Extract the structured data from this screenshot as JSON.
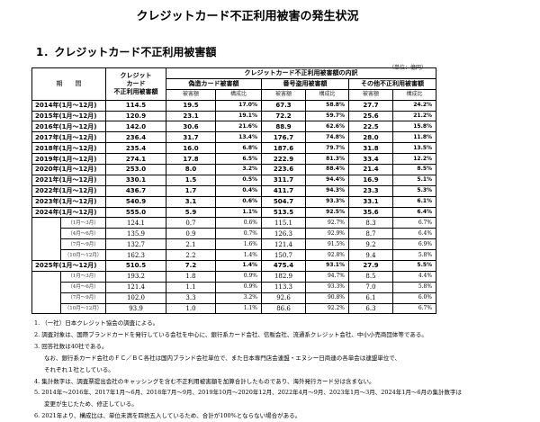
{
  "title": "クレジットカード不正利用被害の発生状況",
  "heading": "1．クレジットカード不正利用被害額",
  "unit": "（単位：億円）",
  "table": {
    "h_period": "期　　間",
    "h_total": "クレジット\nカード\n不正利用被害額",
    "h_breakdown": "クレジットカード不正利用被害額の内訳",
    "h_forged": "偽造カード被害額",
    "h_number": "番号盗用被害額",
    "h_other": "その他不正利用被害額",
    "h_amount": "被害額",
    "h_ratio": "構成比",
    "rows": [
      {
        "type": "year",
        "period": "2014年(1月～12月)",
        "total": "114.5",
        "f": "19.5",
        "fr": "17.0%",
        "n": "67.3",
        "nr": "58.8%",
        "o": "27.7",
        "or": "24.2%"
      },
      {
        "type": "year",
        "period": "2015年(1月～12月)",
        "total": "120.9",
        "f": "23.1",
        "fr": "19.1%",
        "n": "72.2",
        "nr": "59.7%",
        "o": "25.6",
        "or": "21.2%"
      },
      {
        "type": "year",
        "period": "2016年(1月～12月)",
        "total": "142.0",
        "f": "30.6",
        "fr": "21.6%",
        "n": "88.9",
        "nr": "62.6%",
        "o": "22.5",
        "or": "15.8%"
      },
      {
        "type": "year",
        "period": "2017年(1月～12月)",
        "total": "236.4",
        "f": "31.7",
        "fr": "13.4%",
        "n": "176.7",
        "nr": "74.8%",
        "o": "28.0",
        "or": "11.8%"
      },
      {
        "type": "year",
        "period": "2018年(1月～12月)",
        "total": "235.4",
        "f": "16.0",
        "fr": "6.8%",
        "n": "187.6",
        "nr": "79.7%",
        "o": "31.8",
        "or": "13.5%"
      },
      {
        "type": "year",
        "period": "2019年(1月～12月)",
        "total": "274.1",
        "f": "17.8",
        "fr": "6.5%",
        "n": "222.9",
        "nr": "81.3%",
        "o": "33.4",
        "or": "12.2%"
      },
      {
        "type": "year",
        "period": "2020年(1月～12月)",
        "total": "253.0",
        "f": "8.0",
        "fr": "3.2%",
        "n": "223.6",
        "nr": "88.4%",
        "o": "21.4",
        "or": "8.5%"
      },
      {
        "type": "year",
        "period": "2021年(1月～12月)",
        "total": "330.1",
        "f": "1.5",
        "fr": "0.5%",
        "n": "311.7",
        "nr": "94.4%",
        "o": "16.9",
        "or": "5.1%"
      },
      {
        "type": "year",
        "period": "2022年(1月～12月)",
        "total": "436.7",
        "f": "1.7",
        "fr": "0.4%",
        "n": "411.7",
        "nr": "94.3%",
        "o": "23.3",
        "or": "5.3%"
      },
      {
        "type": "year",
        "period": "2023年(1月～12月)",
        "total": "540.9",
        "f": "3.1",
        "fr": "0.6%",
        "n": "504.7",
        "nr": "93.3%",
        "o": "33.1",
        "or": "6.1%"
      },
      {
        "type": "year",
        "period": "2024年(1月～12月)",
        "total": "555.0",
        "f": "5.9",
        "fr": "1.1%",
        "n": "513.5",
        "nr": "92.5%",
        "o": "35.6",
        "or": "6.4%"
      },
      {
        "type": "q",
        "period": "（1月～3月）",
        "total": "124.1",
        "f": "0.7",
        "fr": "0.6%",
        "n": "115.1",
        "nr": "92.7%",
        "o": "8.3",
        "or": "6.7%"
      },
      {
        "type": "q",
        "period": "（4月～6月）",
        "total": "135.9",
        "f": "0.9",
        "fr": "0.7%",
        "n": "126.3",
        "nr": "92.9%",
        "o": "8.7",
        "or": "6.4%"
      },
      {
        "type": "q",
        "period": "（7月～9月）",
        "total": "132.7",
        "f": "2.1",
        "fr": "1.6%",
        "n": "121.4",
        "nr": "91.5%",
        "o": "9.2",
        "or": "6.9%"
      },
      {
        "type": "q",
        "period": "（10月～12月）",
        "total": "162.3",
        "f": "2.2",
        "fr": "1.4%",
        "n": "150.7",
        "nr": "92.8%",
        "o": "9.4",
        "or": "5.8%"
      },
      {
        "type": "year",
        "period": "2025年(1月～12月)",
        "total": "510.5",
        "f": "7.2",
        "fr": "1.4%",
        "n": "475.4",
        "nr": "93.1%",
        "o": "27.9",
        "or": "5.5%"
      },
      {
        "type": "q",
        "period": "（1月～3月）",
        "total": "193.2",
        "f": "1.8",
        "fr": "0.9%",
        "n": "182.9",
        "nr": "94.7%",
        "o": "8.5",
        "or": "4.4%"
      },
      {
        "type": "q",
        "period": "（4月～6月）",
        "total": "121.4",
        "f": "1.1",
        "fr": "0.9%",
        "n": "113.3",
        "nr": "93.3%",
        "o": "7.0",
        "or": "5.8%"
      },
      {
        "type": "q",
        "period": "（7月～9月）",
        "total": "102.0",
        "f": "3.3",
        "fr": "3.2%",
        "n": "92.6",
        "nr": "90.8%",
        "o": "6.1",
        "or": "6.0%"
      },
      {
        "type": "q",
        "period": "（10月～12月）",
        "total": "93.9",
        "f": "1.0",
        "fr": "1.1%",
        "n": "86.6",
        "nr": "92.2%",
        "o": "6.3",
        "or": "6.7%"
      }
    ]
  },
  "notes": [
    {
      "text": "1. （一社）日本クレジット協会の調査による。",
      "indent": false
    },
    {
      "text": "2. 調査対象は、国際ブランドカードを発行している会社を中心に、銀行系カード会社、信販会社、流通系クレジット会社、中小小売商団体等である。",
      "indent": false
    },
    {
      "text": "3. 回答社数は40社である。",
      "indent": false
    },
    {
      "text": "なお、銀行系カード会社のＦＣ／ＢＣ各社は国内ブランド会社単位で、また日本専門店会連盟・エヌシー日商連の各単会は連盟単位で、",
      "indent": true
    },
    {
      "text": "それぞれ１社としている。",
      "indent": true
    },
    {
      "text": "4. 集計数字は、調査票提出会社のキャッシングを含む不正利用被害額を加算合計したものであり、海外発行カード分は含まない。",
      "indent": false
    },
    {
      "text": "5. 2014年～2016年、2017年1月～6月、2018年7月～9月、2019年10月～2020年12月、2022年4月～9月、2023年1月～3月、2024年1月～6月の集計数字は",
      "indent": false
    },
    {
      "text": "変更が生じたため、修正している。",
      "indent": true
    },
    {
      "text": "6. 2021年より、構成比は、単位未満を四捨五入しているため、合計が100%とならない場合がある。",
      "indent": false
    }
  ]
}
